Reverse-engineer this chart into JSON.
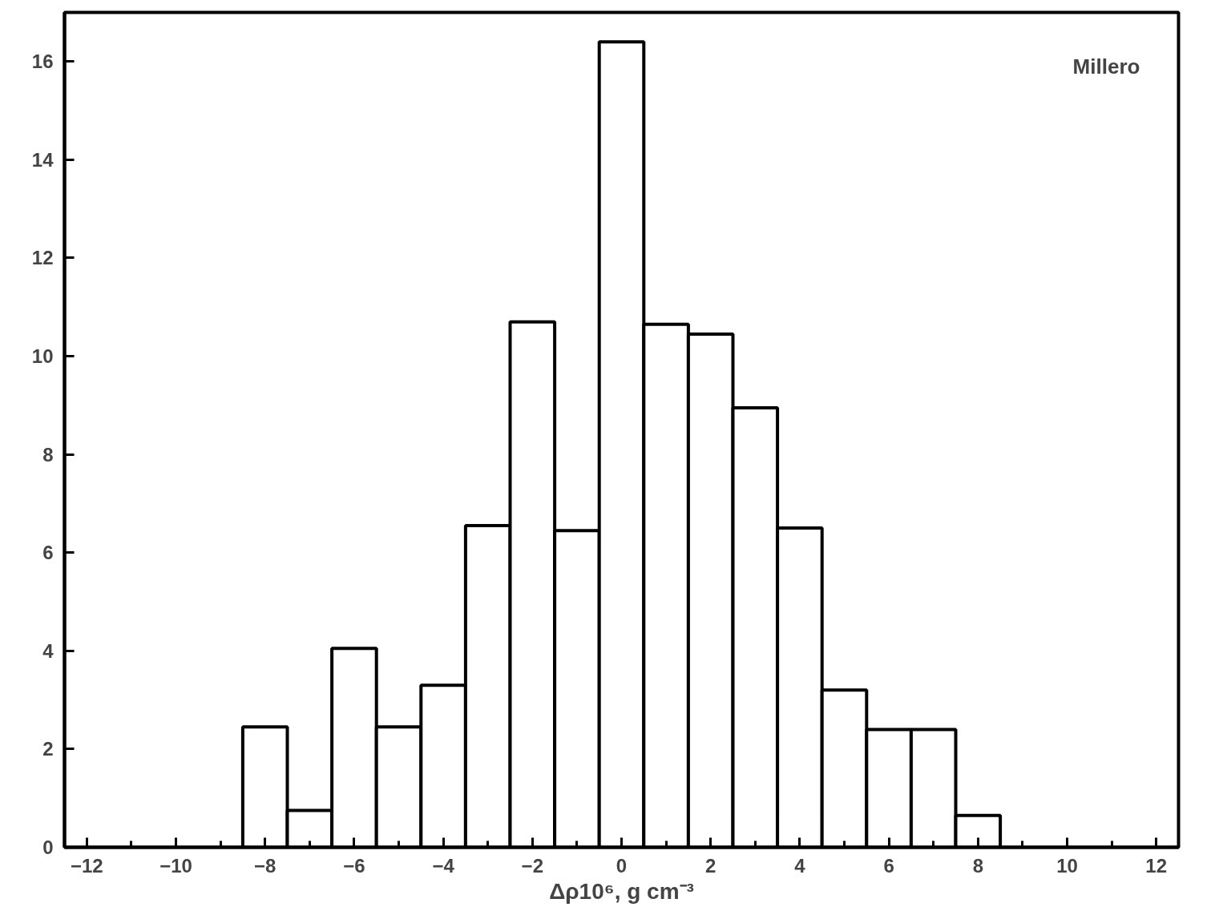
{
  "chart_data": {
    "type": "histogram",
    "xlabel": "Δρ10⁶, g cm⁻³",
    "annotations": [
      "Millero"
    ],
    "bins": [
      -8.5,
      -7.5,
      -6.5,
      -5.5,
      -4.5,
      -3.5,
      -2.5,
      -1.5,
      -0.5,
      0.5,
      1.5,
      2.5,
      3.5,
      4.5,
      5.5,
      6.5,
      7.5,
      8.5
    ],
    "values": [
      2.45,
      0.75,
      4.05,
      2.45,
      3.3,
      6.55,
      10.7,
      6.45,
      16.4,
      10.65,
      10.45,
      8.95,
      6.5,
      3.2,
      2.4,
      2.4,
      0.65
    ],
    "color": "#ffffff",
    "xlim": [
      -12.5,
      12.5
    ],
    "ylim": [
      0,
      17
    ],
    "xticks": [
      -12,
      -10,
      -8,
      -6,
      -4,
      -2,
      0,
      2,
      4,
      6,
      8,
      10,
      12
    ],
    "yticks": [
      0,
      2,
      4,
      6,
      8,
      10,
      12,
      14,
      16
    ],
    "grid": false
  }
}
